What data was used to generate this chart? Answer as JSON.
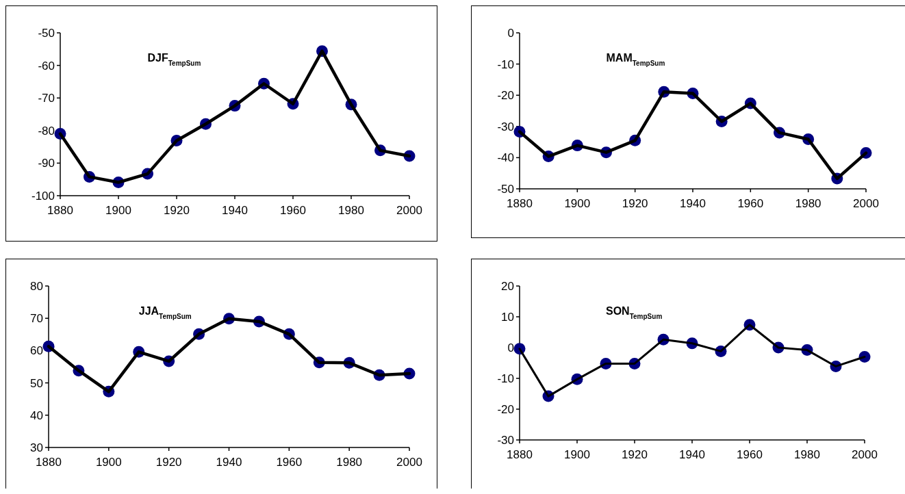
{
  "chart_data": [
    {
      "type": "line",
      "title": "DJF$_{TempSum}$",
      "x": [
        1880,
        1890,
        1900,
        1910,
        1920,
        1930,
        1940,
        1950,
        1960,
        1970,
        1980,
        1990,
        2000
      ],
      "series": [
        {
          "color": "#000080",
          "values": [
            -81,
            -94.2,
            -95.9,
            -93.3,
            -83.1,
            -78,
            -72.4,
            -65.6,
            -71.8,
            -55.6,
            -72,
            -86.1,
            -87.8
          ]
        }
      ],
      "xlim": [
        1880,
        2000
      ],
      "xticks": [
        1880,
        1900,
        1920,
        1940,
        1960,
        1980,
        2000
      ],
      "ylim": [
        -100,
        -50
      ],
      "yticks": [
        -100,
        -90,
        -80,
        -70,
        -60,
        -50
      ],
      "marker": "circle"
    },
    {
      "type": "line",
      "title": "MAM$_{TempSum}$",
      "x": [
        1880,
        1890,
        1900,
        1910,
        1920,
        1930,
        1940,
        1950,
        1960,
        1970,
        1980,
        1990,
        2000
      ],
      "series": [
        {
          "color": "#000080",
          "values": [
            -31.7,
            -39.6,
            -36.1,
            -38.3,
            -34.5,
            -18.9,
            -19.4,
            -28.4,
            -22.6,
            -32,
            -34.1,
            -46.7,
            -38.5
          ]
        }
      ],
      "xlim": [
        1880,
        2000
      ],
      "xticks": [
        1880,
        1900,
        1920,
        1940,
        1960,
        1980,
        2000
      ],
      "ylim": [
        -50,
        0
      ],
      "yticks": [
        -50,
        -40,
        -30,
        -20,
        -10,
        0
      ],
      "marker": "circle"
    },
    {
      "type": "line",
      "title": "JJA$_{TempSum}$",
      "x": [
        1880,
        1890,
        1900,
        1910,
        1920,
        1930,
        1940,
        1950,
        1960,
        1970,
        1980,
        1990,
        2000
      ],
      "series": [
        {
          "color": "#000080",
          "values": [
            61.3,
            53.8,
            47.3,
            59.6,
            56.7,
            65.1,
            69.9,
            69,
            65.1,
            56.3,
            56.2,
            52.4,
            52.9
          ]
        }
      ],
      "xlim": [
        1880,
        2000
      ],
      "xticks": [
        1880,
        1900,
        1920,
        1940,
        1960,
        1980,
        2000
      ],
      "ylim": [
        30,
        80
      ],
      "yticks": [
        30,
        40,
        50,
        60,
        70,
        80
      ],
      "marker": "circle"
    },
    {
      "type": "line",
      "title": "SON$_{TempSum}$",
      "x": [
        1880,
        1890,
        1900,
        1910,
        1920,
        1930,
        1940,
        1950,
        1960,
        1970,
        1980,
        1990,
        2000
      ],
      "series": [
        {
          "color": "#000080",
          "values": [
            -0.4,
            -15.8,
            -10.3,
            -5.2,
            -5.2,
            2.6,
            1.4,
            -1.2,
            7.4,
            0,
            -0.8,
            -6.1,
            -3
          ]
        }
      ],
      "xlim": [
        1880,
        2000
      ],
      "xticks": [
        1880,
        1900,
        1920,
        1940,
        1960,
        1980,
        2000
      ],
      "ylim": [
        -30,
        20
      ],
      "yticks": [
        -30,
        -20,
        -10,
        0,
        10,
        20
      ],
      "marker": "circle"
    }
  ]
}
